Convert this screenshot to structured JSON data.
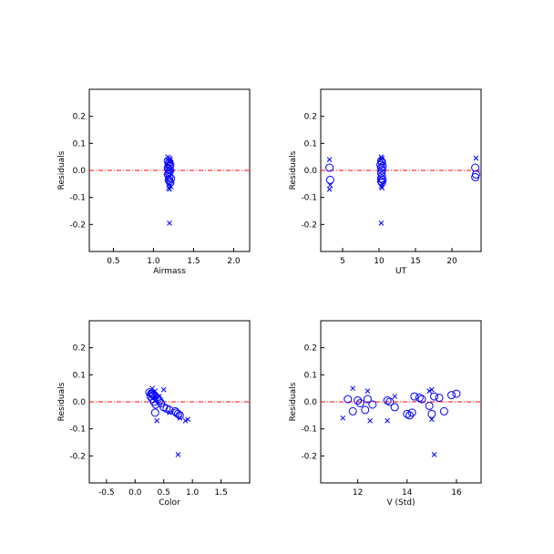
{
  "colors": {
    "marker": "#0000ff",
    "zero_line": "#ff0000",
    "axes": "#000000",
    "background": "#ffffff"
  },
  "marker_legend": {
    "circle": "marker style 1",
    "cross": "marker style 2"
  },
  "chart_data": [
    {
      "type": "scatter",
      "xlabel": "Airmass",
      "ylabel": "Residuals",
      "xlim": [
        0.2,
        2.2
      ],
      "ylim": [
        -0.3,
        0.3
      ],
      "xticks": [
        0.5,
        1.0,
        1.5,
        2.0
      ],
      "yticks": [
        -0.2,
        -0.1,
        0.0,
        0.1,
        0.2
      ],
      "xtick_labels": [
        "0.5",
        "1.0",
        "1.5",
        "2.0"
      ],
      "ytick_labels": [
        "-0.2",
        "-0.1",
        "0.0",
        "0.1",
        "0.2"
      ],
      "zero_line": 0.0,
      "series": [
        {
          "marker": "circle",
          "x": [
            1.18,
            1.2,
            1.19,
            1.21,
            1.2,
            1.18,
            1.19,
            1.21,
            1.2,
            1.19,
            1.18,
            1.2,
            1.22,
            1.19,
            1.2,
            1.21
          ],
          "y": [
            0.035,
            0.03,
            0.025,
            0.02,
            0.015,
            0.01,
            0.005,
            0.0,
            -0.005,
            -0.01,
            -0.015,
            -0.025,
            -0.03,
            -0.035,
            -0.04,
            -0.045
          ]
        },
        {
          "marker": "cross",
          "x": [
            1.18,
            1.2,
            1.21,
            1.19,
            1.2,
            1.22,
            1.19,
            1.2,
            1.2
          ],
          "y": [
            0.05,
            0.045,
            0.04,
            0.035,
            -0.05,
            -0.06,
            -0.065,
            -0.07,
            -0.195
          ]
        }
      ]
    },
    {
      "type": "scatter",
      "xlabel": "UT",
      "ylabel": "Residuals",
      "xlim": [
        2.0,
        24.0
      ],
      "ylim": [
        -0.3,
        0.3
      ],
      "xticks": [
        5,
        10,
        15,
        20
      ],
      "yticks": [
        -0.2,
        -0.1,
        0.0,
        0.1,
        0.2
      ],
      "xtick_labels": [
        "5",
        "10",
        "15",
        "20"
      ],
      "ytick_labels": [
        "-0.2",
        "-0.1",
        "0.0",
        "0.1",
        "0.2"
      ],
      "zero_line": 0.0,
      "series": [
        {
          "marker": "circle",
          "x": [
            3.2,
            3.3,
            10.3,
            10.4,
            10.2,
            10.5,
            10.3,
            10.4,
            10.3,
            10.4,
            10.3,
            10.5,
            10.3,
            10.4,
            23.2,
            23.3,
            23.2
          ],
          "y": [
            0.01,
            -0.035,
            0.035,
            0.03,
            0.02,
            0.015,
            0.01,
            0.0,
            -0.01,
            -0.02,
            -0.03,
            -0.035,
            -0.04,
            -0.045,
            0.01,
            -0.015,
            -0.025
          ]
        },
        {
          "marker": "cross",
          "x": [
            3.2,
            3.3,
            3.2,
            10.3,
            10.4,
            10.3,
            10.4,
            10.3,
            10.4,
            10.3,
            23.3
          ],
          "y": [
            0.04,
            -0.055,
            -0.07,
            0.05,
            0.045,
            0.04,
            -0.05,
            -0.06,
            -0.065,
            -0.195,
            0.045
          ]
        }
      ]
    },
    {
      "type": "scatter",
      "xlabel": "Color",
      "ylabel": "Residuals",
      "xlim": [
        -0.8,
        2.0
      ],
      "ylim": [
        -0.3,
        0.3
      ],
      "xticks": [
        -0.5,
        0.0,
        0.5,
        1.0,
        1.5
      ],
      "yticks": [
        -0.2,
        -0.1,
        0.0,
        0.1,
        0.2
      ],
      "xtick_labels": [
        "-0.5",
        "0.0",
        "0.5",
        "1.0",
        "1.5"
      ],
      "ytick_labels": [
        "-0.2",
        "-0.1",
        "0.0",
        "0.1",
        "0.2"
      ],
      "zero_line": 0.0,
      "series": [
        {
          "marker": "circle",
          "x": [
            0.25,
            0.28,
            0.3,
            0.32,
            0.27,
            0.35,
            0.38,
            0.3,
            0.4,
            0.42,
            0.33,
            0.45,
            0.36,
            0.5,
            0.55,
            0.6,
            0.7,
            0.72,
            0.75,
            0.78,
            0.35
          ],
          "y": [
            0.035,
            0.03,
            0.03,
            0.025,
            0.02,
            0.02,
            0.015,
            0.01,
            0.01,
            0.005,
            0.0,
            -0.005,
            -0.01,
            -0.02,
            -0.025,
            -0.03,
            -0.035,
            -0.04,
            -0.045,
            -0.05,
            -0.04
          ]
        },
        {
          "marker": "cross",
          "x": [
            0.3,
            0.35,
            0.5,
            0.28,
            0.42,
            0.38,
            0.6,
            0.78,
            0.88,
            0.92,
            0.75
          ],
          "y": [
            0.05,
            0.04,
            0.045,
            0.035,
            0.02,
            -0.07,
            -0.04,
            -0.06,
            -0.07,
            -0.065,
            -0.195
          ]
        }
      ]
    },
    {
      "type": "scatter",
      "xlabel": "V (Std)",
      "ylabel": "Residuals",
      "xlim": [
        10.5,
        17.0
      ],
      "ylim": [
        -0.3,
        0.3
      ],
      "xticks": [
        12,
        14,
        16
      ],
      "yticks": [
        -0.2,
        -0.1,
        0.0,
        0.1,
        0.2
      ],
      "xtick_labels": [
        "12",
        "14",
        "16"
      ],
      "ytick_labels": [
        "-0.2",
        "-0.1",
        "0.0",
        "0.1",
        "0.2"
      ],
      "zero_line": 0.0,
      "series": [
        {
          "marker": "circle",
          "x": [
            11.6,
            11.8,
            12.0,
            12.1,
            12.3,
            12.4,
            12.6,
            13.2,
            13.3,
            13.5,
            14.0,
            14.1,
            14.2,
            14.3,
            14.5,
            14.6,
            14.9,
            15.0,
            15.1,
            15.3,
            15.5,
            15.8,
            16.0
          ],
          "y": [
            0.01,
            -0.035,
            0.005,
            -0.005,
            -0.03,
            0.01,
            -0.01,
            0.005,
            0.0,
            -0.02,
            -0.045,
            -0.05,
            -0.04,
            0.02,
            0.015,
            0.01,
            -0.015,
            -0.045,
            0.02,
            0.015,
            -0.035,
            0.025,
            0.03
          ]
        },
        {
          "marker": "cross",
          "x": [
            11.4,
            11.8,
            12.4,
            12.5,
            13.2,
            13.5,
            14.9,
            15.0,
            15.0,
            15.1
          ],
          "y": [
            -0.06,
            0.05,
            0.04,
            -0.07,
            -0.07,
            0.02,
            0.04,
            0.045,
            -0.065,
            -0.195
          ]
        }
      ]
    }
  ]
}
